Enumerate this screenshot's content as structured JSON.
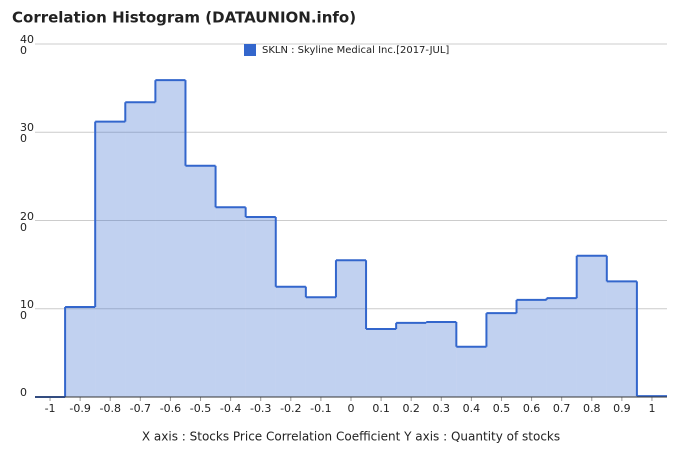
{
  "chart_data": {
    "type": "histogram",
    "title": "Correlation Histogram (DATAUNION.info)",
    "x_label": "X axis : Stocks Price Correlation Coefficient  Y axis : Quantity of stocks",
    "series": [
      {
        "name": "SKLN : Skyline Medical Inc.[2017-JUL]",
        "color": "#3366cc",
        "values": [
          0,
          102,
          312,
          334,
          359,
          262,
          215,
          204,
          125,
          113,
          155,
          77,
          84,
          85,
          57,
          95,
          110,
          112,
          160,
          131,
          1
        ]
      }
    ],
    "bins": [
      -1.05,
      -0.95,
      -0.85,
      -0.75,
      -0.65,
      -0.55,
      -0.45,
      -0.35,
      -0.25,
      -0.15,
      -0.05,
      0.05,
      0.15,
      0.25,
      0.35,
      0.45,
      0.55,
      0.65,
      0.75,
      0.85,
      0.95,
      1.05
    ],
    "xlim": [
      -1.05,
      1.05
    ],
    "xticks": [
      -1,
      -0.9,
      -0.8,
      -0.7,
      -0.6,
      -0.5,
      -0.4,
      -0.3,
      -0.2,
      -0.1,
      0,
      0.1,
      0.2,
      0.3,
      0.4,
      0.5,
      0.6,
      0.7,
      0.8,
      0.9,
      1
    ],
    "ylim": [
      0,
      400
    ],
    "yticks": [
      0,
      100,
      200,
      300,
      400
    ],
    "grid": true
  }
}
